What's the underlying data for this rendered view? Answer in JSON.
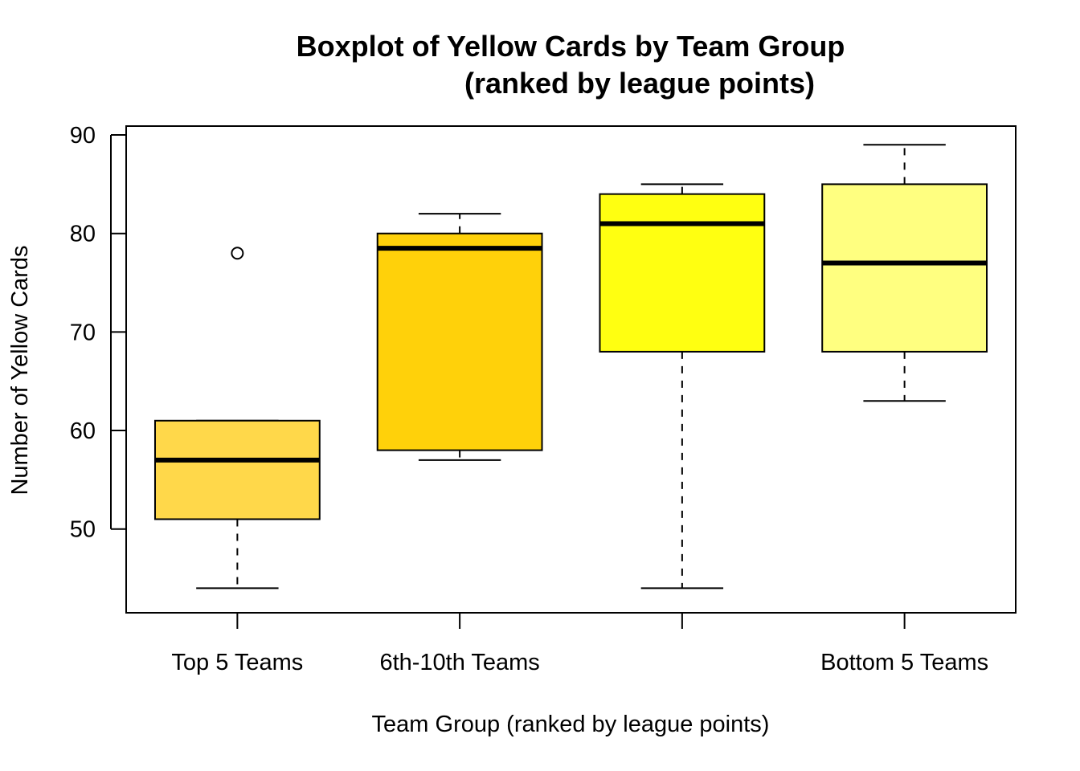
{
  "chart_data": {
    "type": "boxplot",
    "title_line1": "Boxplot of Yellow Cards by Team Group",
    "title_line2": "(ranked by league points)",
    "xlabel": "Team Group (ranked by league points)",
    "ylabel": "Number of Yellow Cards",
    "ylim": [
      41.5,
      90.9
    ],
    "yticks": [
      50,
      60,
      70,
      80,
      90
    ],
    "categories": [
      "Top 5 Teams",
      "6th-10th Teams",
      "",
      "Bottom 5 Teams"
    ],
    "boxes": [
      {
        "whisker_low": 44,
        "q1": 51,
        "median": 57,
        "q3": 61,
        "whisker_high": 61,
        "outliers": [
          78
        ],
        "fill": "#FFD84A"
      },
      {
        "whisker_low": 57,
        "q1": 58,
        "median": 78.5,
        "q3": 80,
        "whisker_high": 82,
        "outliers": [],
        "fill": "#FFD10A"
      },
      {
        "whisker_low": 44,
        "q1": 68,
        "median": 81,
        "q3": 84,
        "whisker_high": 85,
        "outliers": [],
        "fill": "#FFFF11"
      },
      {
        "whisker_low": 63,
        "q1": 68,
        "median": 77,
        "q3": 85,
        "whisker_high": 89,
        "outliers": [],
        "fill": "#FFFF80"
      }
    ],
    "grid": false,
    "legend": "none"
  }
}
